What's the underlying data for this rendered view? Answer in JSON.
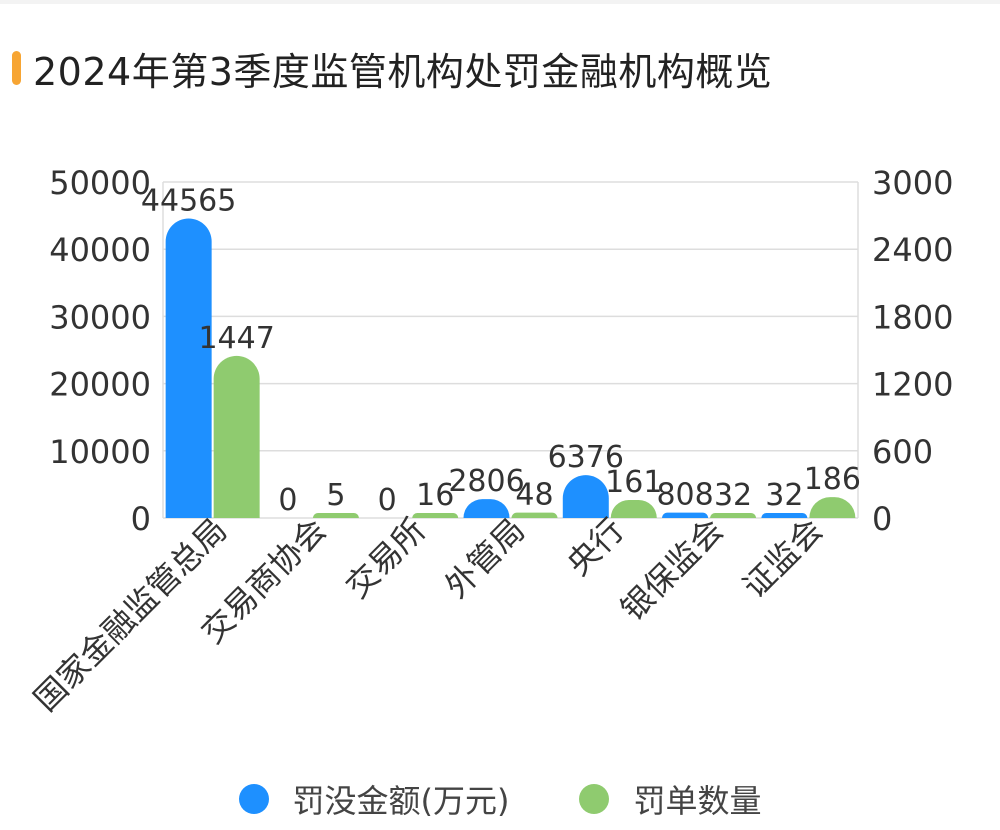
{
  "title": "2024年第3季度监管机构处罚金融机构概览",
  "colors": {
    "accent": "#f7a533",
    "series1": "#1e90ff",
    "series2": "#8fcb6f",
    "grid": "#dddddd",
    "text": "#333333"
  },
  "chart_data": {
    "type": "bar",
    "title": "2024年第3季度监管机构处罚金融机构概览",
    "categories": [
      "国家金融监管总局",
      "交易商协会",
      "交易所",
      "外管局",
      "央行",
      "银保监会",
      "证监会"
    ],
    "series": [
      {
        "name": "罚没金额(万元)",
        "axis": "left",
        "color": "#1e90ff",
        "values": [
          44565,
          0,
          0,
          2806,
          6376,
          808,
          32
        ],
        "labels": [
          "44565",
          "0",
          "0",
          "2806",
          "6376",
          "808",
          "32"
        ]
      },
      {
        "name": "罚单数量",
        "axis": "right",
        "color": "#8fcb6f",
        "values": [
          1447,
          5,
          16,
          48,
          161,
          32,
          186
        ],
        "labels": [
          "1447",
          "5",
          "16",
          "48",
          "161",
          "32",
          "186"
        ]
      }
    ],
    "y_left": {
      "min": 0,
      "max": 50000,
      "ticks": [
        "0",
        "10000",
        "20000",
        "30000",
        "40000",
        "50000"
      ]
    },
    "y_right": {
      "min": 0,
      "max": 3000,
      "ticks": [
        "0",
        "600",
        "1200",
        "1800",
        "2400",
        "3000"
      ]
    },
    "grid": true,
    "legend_position": "bottom"
  }
}
